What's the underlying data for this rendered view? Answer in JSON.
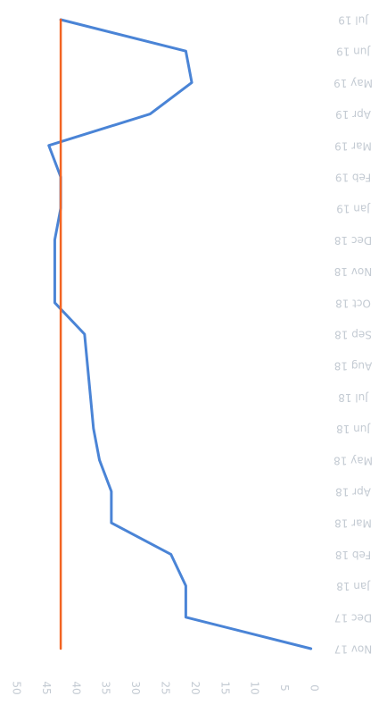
{
  "chart_data": {
    "type": "line",
    "orientation": "horizontal",
    "categories": [
      "Jul 19",
      "Jun 19",
      "May 19",
      "Apr 19",
      "Mar 19",
      "Feb 19",
      "Jan 19",
      "Dec 18",
      "Nov 18",
      "Oct 18",
      "Sep 18",
      "Aug 18",
      "Jul 18",
      "Jun 18",
      "May 18",
      "Apr 18",
      "Mar 18",
      "Feb 18",
      "Jan 18",
      "Dec 17",
      "Nov 17"
    ],
    "series": [
      {
        "name": "",
        "color": "#4a84d6",
        "values": [
          42.5,
          21.5,
          20.5,
          27.5,
          44.5,
          42.5,
          42.5,
          43.5,
          43.5,
          43.5,
          38.5,
          38.0,
          37.5,
          37.0,
          36.0,
          34.0,
          34.0,
          24.0,
          21.5,
          21.5,
          0.5
        ]
      },
      {
        "name": "",
        "color": "#f26422",
        "values": [
          42.5,
          42.5,
          42.5,
          42.5,
          42.5,
          42.5,
          42.5,
          42.5,
          42.5,
          42.5,
          42.5,
          42.5,
          42.5,
          42.5,
          42.5,
          42.5,
          42.5,
          42.5,
          42.5,
          42.5,
          42.5
        ]
      }
    ],
    "x_ticks": [
      50,
      45,
      40,
      35,
      30,
      25,
      20,
      15,
      10,
      5,
      0
    ],
    "xlim": [
      50,
      0
    ],
    "title": "",
    "xlabel": "",
    "ylabel": "",
    "grid": false,
    "legend": "none"
  }
}
